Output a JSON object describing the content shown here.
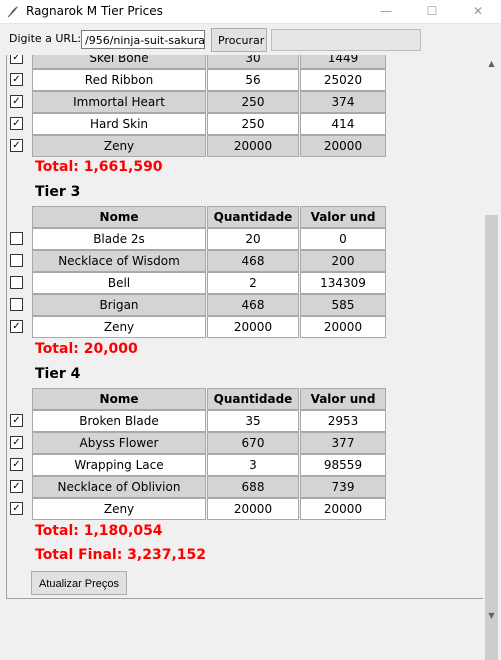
{
  "window": {
    "title": "Ragnarok M Tier Prices",
    "minimize_glyph": "—",
    "maximize_glyph": "☐",
    "close_glyph": "✕"
  },
  "urlbar": {
    "label": "Digite a URL:",
    "value": "/956/ninja-suit-sakura",
    "search_label": "Procurar"
  },
  "columns": {
    "name": "Nome",
    "qty": "Quantidade",
    "value": "Valor und"
  },
  "tier2": {
    "rows": [
      {
        "name": "Skel Bone",
        "qty": "30",
        "value": "1449",
        "checked": true
      },
      {
        "name": "Red Ribbon",
        "qty": "56",
        "value": "25020",
        "checked": true
      },
      {
        "name": "Immortal Heart",
        "qty": "250",
        "value": "374",
        "checked": true
      },
      {
        "name": "Hard Skin",
        "qty": "250",
        "value": "414",
        "checked": true
      },
      {
        "name": "Zeny",
        "qty": "20000",
        "value": "20000",
        "checked": true
      }
    ],
    "total": "Total: 1,661,590"
  },
  "tier3": {
    "title": "Tier 3",
    "rows": [
      {
        "name": "Blade 2s",
        "qty": "20",
        "value": "0",
        "checked": false
      },
      {
        "name": "Necklace of Wisdom",
        "qty": "468",
        "value": "200",
        "checked": false
      },
      {
        "name": "Bell",
        "qty": "2",
        "value": "134309",
        "checked": false
      },
      {
        "name": "Brigan",
        "qty": "468",
        "value": "585",
        "checked": false
      },
      {
        "name": "Zeny",
        "qty": "20000",
        "value": "20000",
        "checked": true
      }
    ],
    "total": "Total: 20,000"
  },
  "tier4": {
    "title": "Tier 4",
    "rows": [
      {
        "name": "Broken Blade",
        "qty": "35",
        "value": "2953",
        "checked": true
      },
      {
        "name": "Abyss Flower",
        "qty": "670",
        "value": "377",
        "checked": true
      },
      {
        "name": "Wrapping Lace",
        "qty": "3",
        "value": "98559",
        "checked": true
      },
      {
        "name": "Necklace of Oblivion",
        "qty": "688",
        "value": "739",
        "checked": true
      },
      {
        "name": "Zeny",
        "qty": "20000",
        "value": "20000",
        "checked": true
      }
    ],
    "total": "Total: 1,180,054"
  },
  "final_total": "Total Final: 3,237,152",
  "update_label": "Atualizar Preços",
  "icons": {
    "app": "feather-icon",
    "check_glyph": "✓",
    "scroll_up": "▲",
    "scroll_down": "▼"
  }
}
